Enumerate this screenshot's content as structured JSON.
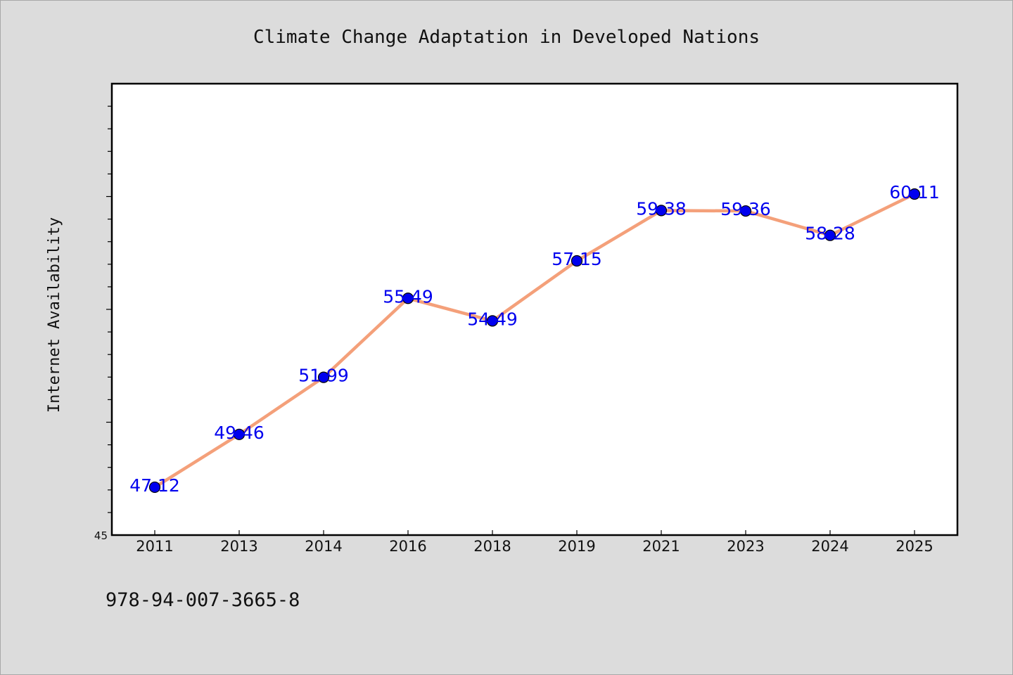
{
  "chart_data": {
    "type": "line",
    "title": "Climate Change Adaptation in Developed Nations",
    "xlabel": "",
    "ylabel": "Internet Availability",
    "categories": [
      "2011",
      "2013",
      "2014",
      "2016",
      "2018",
      "2019",
      "2021",
      "2023",
      "2024",
      "2025"
    ],
    "series": [
      {
        "values": [
          47.12,
          49.46,
          51.99,
          55.49,
          54.49,
          57.15,
          59.38,
          59.36,
          58.28,
          60.11
        ],
        "data_labels": [
          "47.12",
          "49.46",
          "51.99",
          "55.49",
          "54.49",
          "57.15",
          "59.38",
          "59.36",
          "58.28",
          "60.11"
        ],
        "line_color": "#f4a07a",
        "marker_color": "#0000ee"
      }
    ],
    "ylim": [
      45,
      65
    ],
    "yticks_labeled": [
      "45"
    ],
    "grid": false,
    "legend": "none"
  },
  "footer": {
    "isbn": "978-94-007-3665-8"
  },
  "colors": {
    "background": "#dcdcdc",
    "plot_area": "#ffffff",
    "axis": "#000000",
    "label": "#0000ee"
  }
}
